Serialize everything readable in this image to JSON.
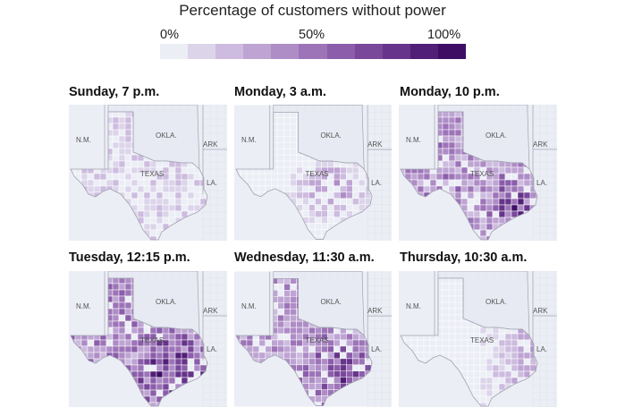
{
  "legend": {
    "title": "Percentage of customers without power",
    "ticks": [
      "0%",
      "50%",
      "100%"
    ],
    "colors": [
      "#eceef6",
      "#dcd5ea",
      "#cdbcdf",
      "#bea4d3",
      "#ae8cc6",
      "#9d74b8",
      "#8b5daa",
      "#79489b",
      "#66348a",
      "#521f78",
      "#3e0e65"
    ]
  },
  "map_labels": {
    "nm": "N.M.",
    "okla": "OKLA.",
    "ark": "ARK",
    "texas": "TEXAS",
    "la": "LA."
  },
  "colors": {
    "background": "#eceef5",
    "texas_fill": "#e4e6f2",
    "border": "#ffffff",
    "state_border": "#a0a3b0",
    "county_line": "#c9ccda"
  },
  "panels": [
    {
      "title": "Sunday, 7 p.m.",
      "intensity": 0.16,
      "region": "scattered"
    },
    {
      "title": "Monday, 3 a.m.",
      "intensity": 0.32,
      "region": "central-southeast"
    },
    {
      "title": "Monday, 10 p.m.",
      "intensity": 0.7,
      "region": "statewide-houston"
    },
    {
      "title": "Tuesday, 12:15 p.m.",
      "intensity": 0.72,
      "region": "statewide"
    },
    {
      "title": "Wednesday, 11:30 a.m.",
      "intensity": 0.6,
      "region": "statewide"
    },
    {
      "title": "Thursday, 10:30 a.m.",
      "intensity": 0.28,
      "region": "east"
    }
  ]
}
